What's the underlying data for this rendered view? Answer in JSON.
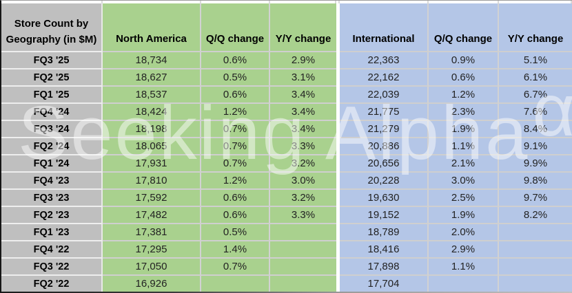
{
  "header": {
    "title_line1": "Store Count by",
    "title_line2": "Geography (in $M)"
  },
  "chart_data": {
    "type": "table",
    "title": "Store Count by Geography (in $M)",
    "columns": [
      "North America",
      "Q/Q change",
      "Y/Y change",
      "International",
      "Q/Q change",
      "Y/Y change"
    ],
    "rows": [
      [
        "FQ3 '25",
        "18,734",
        "0.6%",
        "2.9%",
        "22,363",
        "0.9%",
        "5.1%"
      ],
      [
        "FQ2 '25",
        "18,627",
        "0.5%",
        "3.1%",
        "22,162",
        "0.6%",
        "6.1%"
      ],
      [
        "FQ1 '25",
        "18,537",
        "0.6%",
        "3.4%",
        "22,039",
        "1.2%",
        "6.7%"
      ],
      [
        "FQ4 '24",
        "18,424",
        "1.2%",
        "3.4%",
        "21,775",
        "2.3%",
        "7.6%"
      ],
      [
        "FQ3 '24",
        "18,198",
        "0.7%",
        "3.4%",
        "21,279",
        "1.9%",
        "8.4%"
      ],
      [
        "FQ2 '24",
        "18,065",
        "0.7%",
        "3.3%",
        "20,886",
        "1.1%",
        "9.1%"
      ],
      [
        "FQ1 '24",
        "17,931",
        "0.7%",
        "3.2%",
        "20,656",
        "2.1%",
        "9.9%"
      ],
      [
        "FQ4 '23",
        "17,810",
        "1.2%",
        "3.0%",
        "20,228",
        "3.0%",
        "9.8%"
      ],
      [
        "FQ3 '23",
        "17,592",
        "0.6%",
        "3.2%",
        "19,630",
        "2.5%",
        "9.7%"
      ],
      [
        "FQ2 '23",
        "17,482",
        "0.6%",
        "3.3%",
        "19,152",
        "1.9%",
        "8.2%"
      ],
      [
        "FQ1 '23",
        "17,381",
        "0.5%",
        "",
        "18,789",
        "2.0%",
        ""
      ],
      [
        "FQ4 '22",
        "17,295",
        "1.4%",
        "",
        "18,416",
        "2.9%",
        ""
      ],
      [
        "FQ3 '22",
        "17,050",
        "0.7%",
        "",
        "17,898",
        "1.1%",
        ""
      ],
      [
        "FQ2 '22",
        "16,926",
        "",
        "",
        "17,704",
        "",
        ""
      ]
    ]
  },
  "watermark": {
    "text": "Seeking Alpha",
    "symbol": "α"
  },
  "colors": {
    "label_column_bg": "#bfbfbf",
    "north_america_section_bg": "#a9d18e",
    "international_section_bg": "#b4c6e7",
    "gridline": "#d2d2d2",
    "header_text": "#000000",
    "watermark": "rgba(255,255,255,0.48)"
  }
}
